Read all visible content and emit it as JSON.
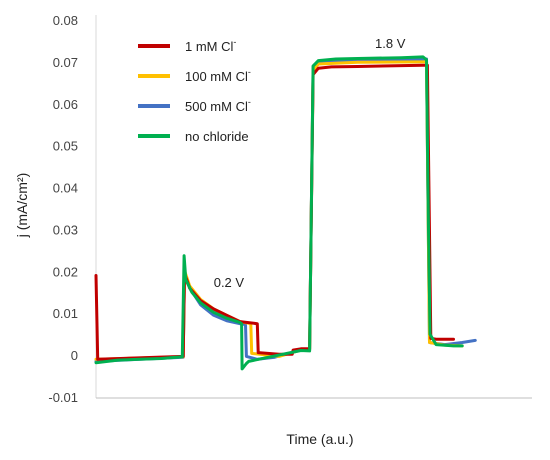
{
  "chart_data": {
    "type": "line",
    "xlabel": "Time (a.u.)",
    "ylabel": "j (mA/cm²)",
    "ylim": [
      -0.01,
      0.08
    ],
    "yticks": [
      "-0.01",
      "0",
      "0.01",
      "0.02",
      "0.03",
      "0.04",
      "0.05",
      "0.06",
      "0.07",
      "0.08"
    ],
    "ytick_values": [
      -0.01,
      0,
      0.01,
      0.02,
      0.03,
      0.04,
      0.05,
      0.06,
      0.07,
      0.08
    ],
    "grid": false,
    "legend_position": "top-left",
    "annotations": [
      {
        "text": "0.2 V",
        "x": 27,
        "y": 0.0175
      },
      {
        "text": "1.8 V",
        "x": 64,
        "y": 0.0745
      }
    ],
    "series": [
      {
        "name": "1 mM Cl",
        "sup": "-",
        "color": "#c00000",
        "points": [
          [
            0,
            0.019
          ],
          [
            0.4,
            -0.001
          ],
          [
            20,
            -0.0003
          ],
          [
            20.3,
            0.0195
          ],
          [
            21.5,
            0.016
          ],
          [
            24,
            0.013
          ],
          [
            27,
            0.011
          ],
          [
            30,
            0.0095
          ],
          [
            33,
            0.008
          ],
          [
            37,
            0.0075
          ],
          [
            37.2,
            0.0006
          ],
          [
            42,
            0.0002
          ],
          [
            45,
            0.0002
          ],
          [
            45.2,
            0.0012
          ],
          [
            47,
            0.0015
          ],
          [
            49,
            0.0015
          ],
          [
            49.8,
            0.067
          ],
          [
            51,
            0.0685
          ],
          [
            54,
            0.0688
          ],
          [
            60,
            0.0689
          ],
          [
            75,
            0.0692
          ],
          [
            76,
            0.0692
          ],
          [
            76.8,
            0.004
          ],
          [
            78,
            0.0038
          ],
          [
            82,
            0.0038
          ]
        ]
      },
      {
        "name": "100 mM Cl",
        "sup": "-",
        "color": "#ffc000",
        "points": [
          [
            0,
            -0.001
          ],
          [
            20,
            -0.0004
          ],
          [
            20.3,
            0.0202
          ],
          [
            21.5,
            0.0165
          ],
          [
            24,
            0.0133
          ],
          [
            27,
            0.011
          ],
          [
            30,
            0.0095
          ],
          [
            33,
            0.008
          ],
          [
            35.5,
            0.0075
          ],
          [
            35.7,
            0.0004
          ],
          [
            42,
            -0.0003
          ],
          [
            47,
            0.0012
          ],
          [
            49,
            0.0013
          ],
          [
            49.8,
            0.068
          ],
          [
            51,
            0.0695
          ],
          [
            60,
            0.0699
          ],
          [
            75,
            0.07
          ],
          [
            75.8,
            0.07
          ],
          [
            76.5,
            0.003
          ],
          [
            80,
            0.0024
          ],
          [
            84,
            0.0022
          ]
        ]
      },
      {
        "name": "500 mM Cl",
        "sup": "-",
        "color": "#4472c4",
        "points": [
          [
            0,
            -0.0015
          ],
          [
            20,
            -0.0005
          ],
          [
            20.3,
            0.02
          ],
          [
            21.5,
            0.016
          ],
          [
            24,
            0.012
          ],
          [
            27,
            0.0095
          ],
          [
            30,
            0.0082
          ],
          [
            33,
            0.0075
          ],
          [
            34.3,
            0.0073
          ],
          [
            34.5,
            -0.0003
          ],
          [
            37,
            -0.001
          ],
          [
            41,
            -0.0005
          ],
          [
            47,
            0.0012
          ],
          [
            49,
            0.0012
          ],
          [
            49.8,
            0.069
          ],
          [
            51,
            0.0702
          ],
          [
            60,
            0.0705
          ],
          [
            75,
            0.0707
          ],
          [
            75.8,
            0.0707
          ],
          [
            76.5,
            0.003
          ],
          [
            80,
            0.0025
          ],
          [
            84,
            0.003
          ],
          [
            87,
            0.0035
          ]
        ]
      },
      {
        "name": "no chloride",
        "sup": "",
        "color": "#00b050",
        "points": [
          [
            0,
            -0.0018
          ],
          [
            5,
            -0.0012
          ],
          [
            10,
            -0.001
          ],
          [
            15,
            -0.0008
          ],
          [
            19.8,
            -0.0004
          ],
          [
            20.2,
            0.0237
          ],
          [
            20.6,
            0.018
          ],
          [
            22,
            0.015
          ],
          [
            24,
            0.0125
          ],
          [
            27,
            0.0102
          ],
          [
            30,
            0.0088
          ],
          [
            33,
            0.0078
          ],
          [
            33.4,
            0.0075
          ],
          [
            33.5,
            -0.0033
          ],
          [
            34.5,
            -0.002
          ],
          [
            35,
            -0.0015
          ],
          [
            47,
            0.0011
          ],
          [
            49,
            0.001
          ],
          [
            49.8,
            0.069
          ],
          [
            51,
            0.0703
          ],
          [
            55,
            0.0707
          ],
          [
            60,
            0.0708
          ],
          [
            70,
            0.071
          ],
          [
            75,
            0.0712
          ],
          [
            75.8,
            0.0705
          ],
          [
            76.2,
            0.035
          ],
          [
            76.6,
            0.005
          ],
          [
            78,
            0.0025
          ],
          [
            82,
            0.0022
          ],
          [
            84,
            0.0022
          ]
        ]
      }
    ]
  }
}
